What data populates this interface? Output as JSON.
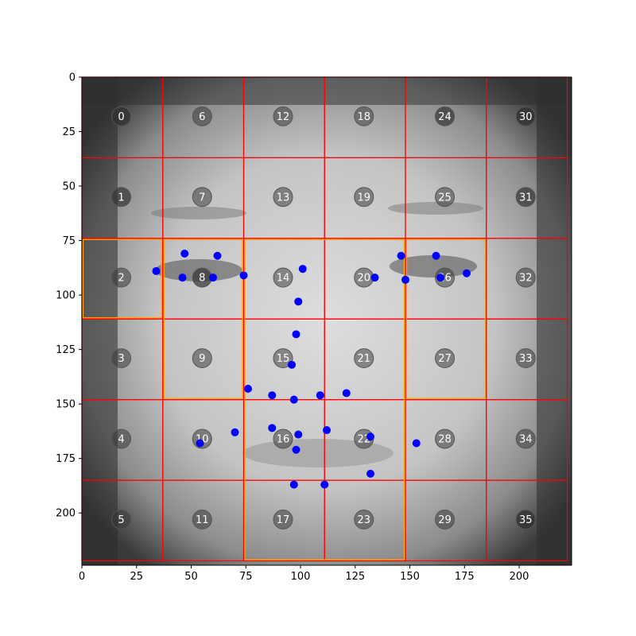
{
  "chart_data": {
    "type": "scatter",
    "title": "",
    "xlabel": "",
    "ylabel": "",
    "xlim": [
      0,
      224
    ],
    "ylim": [
      224,
      0
    ],
    "x_ticks": [
      0,
      25,
      50,
      75,
      100,
      125,
      150,
      175,
      200
    ],
    "y_ticks": [
      0,
      25,
      50,
      75,
      100,
      125,
      150,
      175,
      200
    ],
    "grid": {
      "type": "grid-overlay",
      "rows": 6,
      "cols": 6,
      "x_edges": [
        0,
        37,
        74,
        111,
        148,
        185,
        222
      ],
      "y_edges": [
        0,
        37,
        74,
        111,
        148,
        185,
        222
      ],
      "color": "#ff0000"
    },
    "highlight_boxes": {
      "color": "#ffa500",
      "boxes": [
        {
          "x0": 0,
          "y0": 74,
          "x1": 37,
          "y1": 111
        },
        {
          "x0": 37,
          "y0": 74,
          "x1": 74,
          "y1": 148
        },
        {
          "x0": 74,
          "y0": 74,
          "x1": 148,
          "y1": 222
        },
        {
          "x0": 148,
          "y0": 74,
          "x1": 185,
          "y1": 148
        }
      ]
    },
    "cell_markers": [
      {
        "label": "0",
        "x": 18,
        "y": 18,
        "opacity": 0.85
      },
      {
        "label": "6",
        "x": 55,
        "y": 18,
        "opacity": 0.5
      },
      {
        "label": "12",
        "x": 92,
        "y": 18,
        "opacity": 0.5
      },
      {
        "label": "18",
        "x": 129,
        "y": 18,
        "opacity": 0.5
      },
      {
        "label": "24",
        "x": 166,
        "y": 18,
        "opacity": 0.7
      },
      {
        "label": "30",
        "x": 203,
        "y": 18,
        "opacity": 0.85
      },
      {
        "label": "1",
        "x": 18,
        "y": 55,
        "opacity": 0.7
      },
      {
        "label": "7",
        "x": 55,
        "y": 55,
        "opacity": 0.5
      },
      {
        "label": "13",
        "x": 92,
        "y": 55,
        "opacity": 0.5
      },
      {
        "label": "19",
        "x": 129,
        "y": 55,
        "opacity": 0.5
      },
      {
        "label": "25",
        "x": 166,
        "y": 55,
        "opacity": 0.5
      },
      {
        "label": "31",
        "x": 203,
        "y": 55,
        "opacity": 0.7
      },
      {
        "label": "2",
        "x": 18,
        "y": 92,
        "opacity": 0.5
      },
      {
        "label": "8",
        "x": 55,
        "y": 92,
        "opacity": 0.7
      },
      {
        "label": "14",
        "x": 92,
        "y": 92,
        "opacity": 0.5
      },
      {
        "label": "20",
        "x": 129,
        "y": 92,
        "opacity": 0.5
      },
      {
        "label": "26",
        "x": 166,
        "y": 92,
        "opacity": 0.5
      },
      {
        "label": "32",
        "x": 203,
        "y": 92,
        "opacity": 0.5
      },
      {
        "label": "3",
        "x": 18,
        "y": 129,
        "opacity": 0.5
      },
      {
        "label": "9",
        "x": 55,
        "y": 129,
        "opacity": 0.5
      },
      {
        "label": "15",
        "x": 92,
        "y": 129,
        "opacity": 0.5
      },
      {
        "label": "21",
        "x": 129,
        "y": 129,
        "opacity": 0.5
      },
      {
        "label": "27",
        "x": 166,
        "y": 129,
        "opacity": 0.5
      },
      {
        "label": "33",
        "x": 203,
        "y": 129,
        "opacity": 0.5
      },
      {
        "label": "4",
        "x": 18,
        "y": 166,
        "opacity": 0.5
      },
      {
        "label": "10",
        "x": 55,
        "y": 166,
        "opacity": 0.5
      },
      {
        "label": "16",
        "x": 92,
        "y": 166,
        "opacity": 0.5
      },
      {
        "label": "22",
        "x": 129,
        "y": 166,
        "opacity": 0.5
      },
      {
        "label": "28",
        "x": 166,
        "y": 166,
        "opacity": 0.5
      },
      {
        "label": "34",
        "x": 203,
        "y": 166,
        "opacity": 0.5
      },
      {
        "label": "5",
        "x": 18,
        "y": 203,
        "opacity": 0.5
      },
      {
        "label": "11",
        "x": 55,
        "y": 203,
        "opacity": 0.5
      },
      {
        "label": "17",
        "x": 92,
        "y": 203,
        "opacity": 0.5
      },
      {
        "label": "23",
        "x": 129,
        "y": 203,
        "opacity": 0.5
      },
      {
        "label": "29",
        "x": 166,
        "y": 203,
        "opacity": 0.5
      },
      {
        "label": "35",
        "x": 203,
        "y": 203,
        "opacity": 0.85
      }
    ],
    "series": [
      {
        "color": "#0000ff",
        "points": [
          [
            34,
            89
          ],
          [
            47,
            81
          ],
          [
            46,
            92
          ],
          [
            60,
            92
          ],
          [
            62,
            82
          ],
          [
            74,
            91
          ],
          [
            101,
            88
          ],
          [
            99,
            103
          ],
          [
            98,
            118
          ],
          [
            96,
            132
          ],
          [
            134,
            92
          ],
          [
            146,
            82
          ],
          [
            148,
            93
          ],
          [
            162,
            82
          ],
          [
            164,
            92
          ],
          [
            176,
            90
          ],
          [
            76,
            143
          ],
          [
            87,
            146
          ],
          [
            97,
            148
          ],
          [
            109,
            146
          ],
          [
            121,
            145
          ],
          [
            54,
            168
          ],
          [
            70,
            163
          ],
          [
            87,
            161
          ],
          [
            99,
            164
          ],
          [
            112,
            162
          ],
          [
            132,
            165
          ],
          [
            153,
            168
          ],
          [
            98,
            171
          ],
          [
            132,
            182
          ],
          [
            97,
            187
          ],
          [
            111,
            187
          ]
        ]
      }
    ]
  }
}
